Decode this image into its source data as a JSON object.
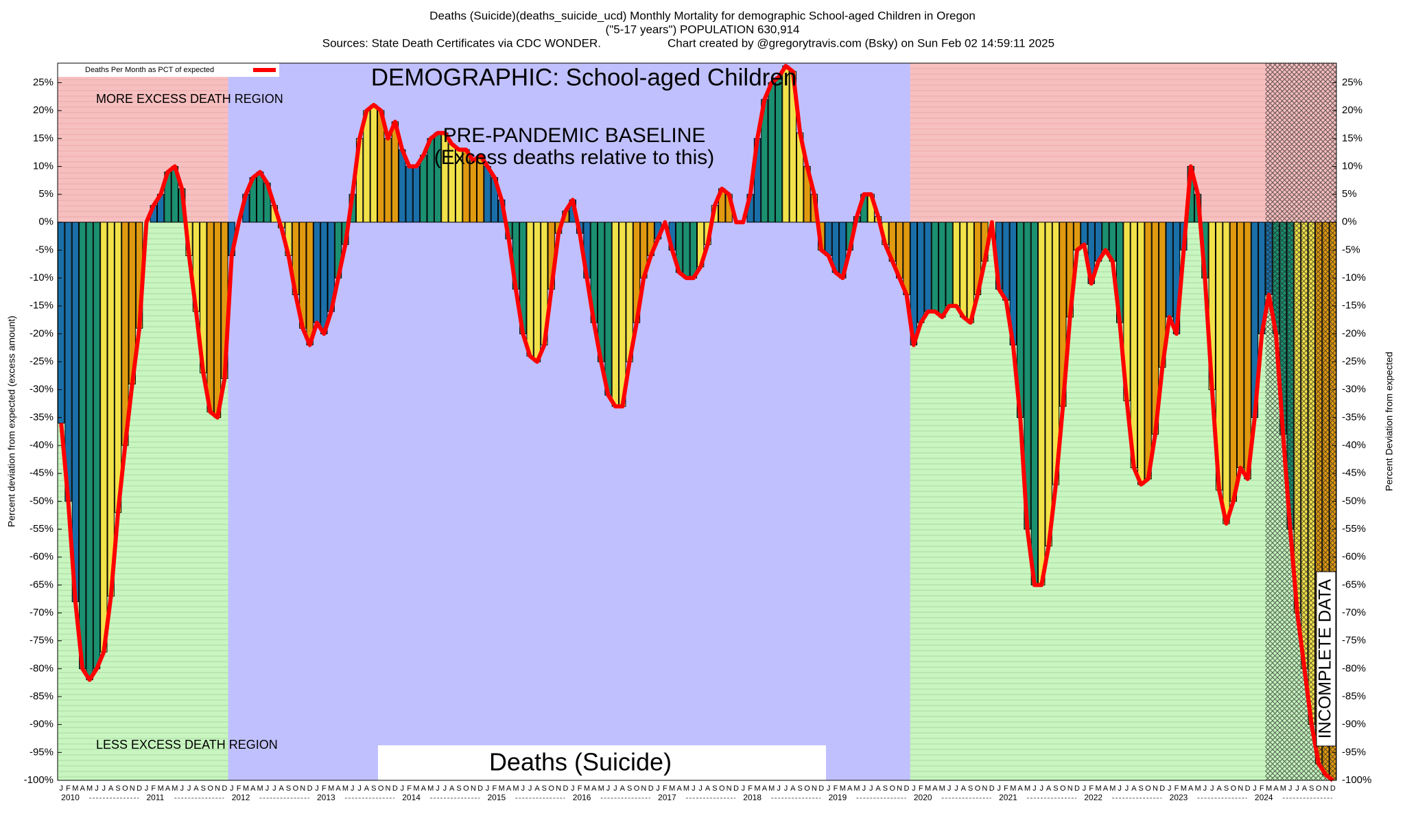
{
  "chart_data": {
    "type": "bar",
    "title": "Deaths (Suicide)(deaths_suicide_ucd) Monthly Mortality for demographic School-aged Children in Oregon",
    "subtitle": "(\"5-17 years\") POPULATION 630,914",
    "sources": "Sources: State Death Certificates via CDC WONDER.",
    "credit": "Chart created by @gregorytravis.com (Bsky) on Sun Feb 02 14:59:11 2025",
    "y_label": "Percent deviation from expected (excess amount)",
    "y2_label": "Percent Deviation from expected",
    "legend_label": "Deaths Per Month as PCT of expected",
    "demographic_label": "DEMOGRAPHIC: School-aged Children",
    "more_region_label": "MORE EXCESS DEATH REGION",
    "less_region_label": "LESS EXCESS DEATH REGION",
    "baseline_label": "PRE-PANDEMIC BASELINE",
    "baseline_sublabel": "(Excess deaths relative to this)",
    "cause_label": "Deaths (Suicide)",
    "incomplete_label": "INCOMPLETE DATA",
    "categories": [
      "J",
      "F",
      "M",
      "A",
      "M",
      "J",
      "J",
      "A",
      "S",
      "O",
      "N",
      "D",
      "J",
      "F",
      "M",
      "A",
      "M",
      "J",
      "J",
      "A",
      "S",
      "O",
      "N",
      "D",
      "J",
      "F",
      "M",
      "A",
      "M",
      "J",
      "J",
      "A",
      "S",
      "O",
      "N",
      "D",
      "J",
      "F",
      "M",
      "A",
      "M",
      "J",
      "J",
      "A",
      "S",
      "O",
      "N",
      "D",
      "J",
      "F",
      "M",
      "A",
      "M",
      "J",
      "J",
      "A",
      "S",
      "O",
      "N",
      "D",
      "J",
      "F",
      "M",
      "A",
      "M",
      "J",
      "J",
      "A",
      "S",
      "O",
      "N",
      "D",
      "J",
      "F",
      "M",
      "A",
      "M",
      "J",
      "J",
      "A",
      "S",
      "O",
      "N",
      "D",
      "J",
      "F",
      "M",
      "A",
      "M",
      "J",
      "J",
      "A",
      "S",
      "O",
      "N",
      "D",
      "J",
      "F",
      "M",
      "A",
      "M",
      "J",
      "J",
      "A",
      "S",
      "O",
      "N",
      "D",
      "J",
      "F",
      "M",
      "A",
      "M",
      "J",
      "J",
      "A",
      "S",
      "O",
      "N",
      "D",
      "J",
      "F",
      "M",
      "A",
      "M",
      "J",
      "J",
      "A",
      "S",
      "O",
      "N",
      "D",
      "J",
      "F",
      "M",
      "A",
      "M",
      "J",
      "J",
      "A",
      "S",
      "O",
      "N",
      "D",
      "J",
      "F",
      "M",
      "A",
      "M",
      "J",
      "J",
      "A",
      "S",
      "O",
      "N",
      "D",
      "J",
      "F",
      "M",
      "A",
      "M",
      "J",
      "J",
      "A",
      "S",
      "O",
      "N",
      "D",
      "J",
      "F",
      "M",
      "A",
      "M",
      "J",
      "J",
      "A",
      "S",
      "O",
      "N",
      "D"
    ],
    "year_labels": [
      "2010",
      "2011",
      "2012",
      "2013",
      "2014",
      "2015",
      "2016",
      "2017",
      "2018",
      "2019",
      "2020",
      "2021",
      "2022",
      "2023",
      "2024"
    ],
    "values": [
      -36,
      -50,
      -68,
      -80,
      -82,
      -80,
      -77,
      -67,
      -52,
      -40,
      -29,
      -19,
      0,
      3,
      5,
      9,
      10,
      6,
      -6,
      -16,
      -27,
      -34,
      -35,
      -28,
      -6,
      0,
      5,
      8,
      9,
      7,
      3,
      -1,
      -6,
      -13,
      -19,
      -22,
      -18,
      -20,
      -16,
      -10,
      -4,
      5,
      15,
      20,
      21,
      20,
      15,
      18,
      13,
      10,
      10,
      12,
      15,
      16,
      16,
      14,
      13,
      13,
      11,
      12,
      10,
      8,
      4,
      -3,
      -12,
      -20,
      -24,
      -25,
      -22,
      -12,
      -2,
      2,
      4,
      -2,
      -10,
      -18,
      -25,
      -31,
      -33,
      -33,
      -25,
      -18,
      -10,
      -6,
      -3,
      0,
      -5,
      -9,
      -10,
      -10,
      -8,
      -4,
      3,
      6,
      5,
      0,
      0,
      5,
      15,
      22,
      25,
      26,
      28,
      27,
      16,
      10,
      5,
      -5,
      -6,
      -9,
      -10,
      -5,
      1,
      5,
      5,
      1,
      -4,
      -7,
      -10,
      -13,
      -22,
      -18,
      -16,
      -16,
      -17,
      -15,
      -15,
      -17,
      -18,
      -13,
      -7,
      0,
      -12,
      -14,
      -22,
      -35,
      -55,
      -65,
      -65,
      -58,
      -47,
      -33,
      -17,
      -5,
      -4,
      -11,
      -7,
      -5,
      -7,
      -18,
      -32,
      -44,
      -47,
      -46,
      -38,
      -26,
      -17,
      -20,
      -5,
      10,
      5,
      -10,
      -30,
      -48,
      -54,
      -50,
      -44,
      -46,
      -35,
      -20,
      -13,
      -20,
      -38,
      -55,
      -70,
      -80,
      -90,
      -97,
      -99,
      -100
    ],
    "color": "#ff0000",
    "quarter_colors": [
      "#1a6fa8",
      "#1b9070",
      "#f2e24a",
      "#e09a10"
    ],
    "baseline_range": [
      24,
      119
    ],
    "incomplete_from": 170,
    "ylim": [
      -100,
      28.5
    ],
    "yticks": [
      {
        "value": 25,
        "label": "25%"
      },
      {
        "value": 20,
        "label": "20%"
      },
      {
        "value": 15,
        "label": "15%"
      },
      {
        "value": 10,
        "label": "10%"
      },
      {
        "value": 5,
        "label": "5%"
      },
      {
        "value": 0,
        "label": "0%"
      },
      {
        "value": -5,
        "label": "-5%"
      },
      {
        "value": -10,
        "label": "-10%"
      },
      {
        "value": -15,
        "label": "-15%"
      },
      {
        "value": -20,
        "label": "-20%"
      },
      {
        "value": -25,
        "label": "-25%"
      },
      {
        "value": -30,
        "label": "-30%"
      },
      {
        "value": -35,
        "label": "-35%"
      },
      {
        "value": -40,
        "label": "-40%"
      },
      {
        "value": -45,
        "label": "-45%"
      },
      {
        "value": -50,
        "label": "-50%"
      },
      {
        "value": -55,
        "label": "-55%"
      },
      {
        "value": -60,
        "label": "-60%"
      },
      {
        "value": -65,
        "label": "-65%"
      },
      {
        "value": -70,
        "label": "-70%"
      },
      {
        "value": -75,
        "label": "-75%"
      },
      {
        "value": -80,
        "label": "-80%"
      },
      {
        "value": -85,
        "label": "-85%"
      },
      {
        "value": -90,
        "label": "-90%"
      },
      {
        "value": -95,
        "label": "-95%"
      },
      {
        "value": -100,
        "label": "-100%"
      }
    ]
  }
}
